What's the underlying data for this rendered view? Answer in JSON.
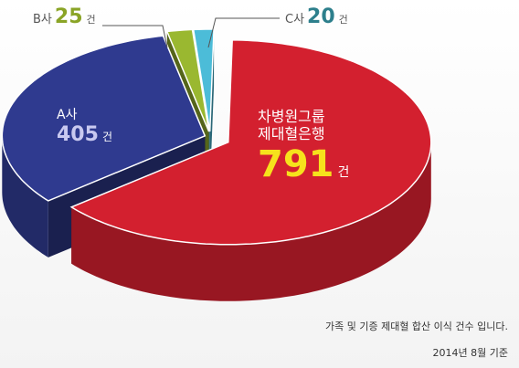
{
  "chart_data": {
    "type": "pie3d",
    "categories": [
      "차병원그룹\n제대혈은행",
      "A사",
      "B사",
      "C사"
    ],
    "values": [
      791,
      405,
      25,
      20
    ],
    "colors": [
      "#d3202f",
      "#2f3a8f",
      "#9ab830",
      "#4cbcd8"
    ],
    "value_unit": "건",
    "footnotes": [
      "가족 및 기증 제대혈 합산 이식 건수 입니다.",
      "2014년 8월 기준"
    ]
  }
}
